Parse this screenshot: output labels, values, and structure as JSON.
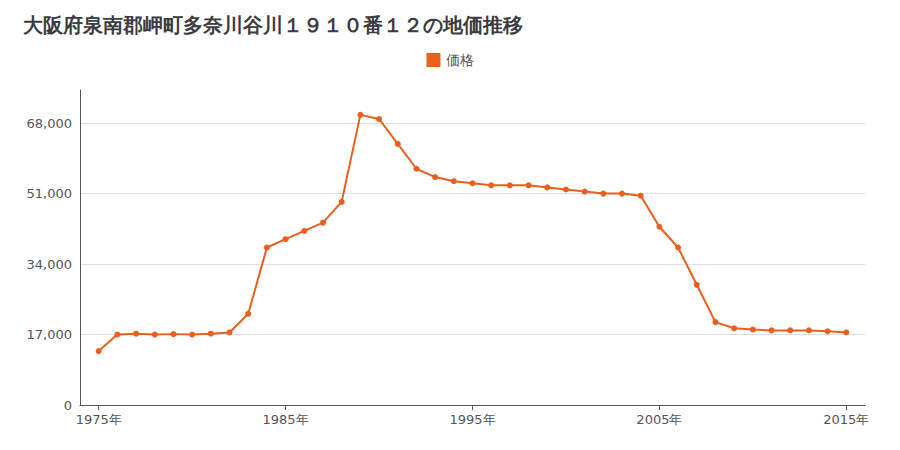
{
  "chart_data": {
    "type": "line",
    "title": "大阪府泉南郡岬町多奈川谷川１９１０番１２の地価推移",
    "x": [
      1975,
      1976,
      1977,
      1978,
      1979,
      1980,
      1981,
      1982,
      1983,
      1984,
      1985,
      1986,
      1987,
      1988,
      1989,
      1990,
      1991,
      1992,
      1993,
      1994,
      1995,
      1996,
      1997,
      1998,
      1999,
      2000,
      2001,
      2002,
      2003,
      2004,
      2005,
      2006,
      2007,
      2008,
      2009,
      2010,
      2011,
      2012,
      2013,
      2014,
      2015
    ],
    "series": [
      {
        "name": "価格",
        "color": "#E8601C",
        "marker": "circle",
        "values": [
          13000,
          17000,
          17200,
          17000,
          17100,
          17000,
          17200,
          17500,
          22000,
          38000,
          40000,
          42000,
          44000,
          49000,
          70000,
          69000,
          63000,
          57000,
          55000,
          54000,
          53500,
          53000,
          53000,
          53000,
          52500,
          52000,
          51500,
          51000,
          51000,
          50500,
          43000,
          38000,
          29000,
          20000,
          18500,
          18200,
          18000,
          18000,
          18000,
          17800,
          17500
        ]
      }
    ],
    "xlim": [
      1974,
      2016
    ],
    "xticks": [
      {
        "value": 1975,
        "label": "1975年"
      },
      {
        "value": 1985,
        "label": "1985年"
      },
      {
        "value": 1995,
        "label": "1995年"
      },
      {
        "value": 2005,
        "label": "2005年"
      },
      {
        "value": 2015,
        "label": "2015年"
      }
    ],
    "ylim": [
      0,
      76000
    ],
    "yticks": [
      0,
      {
        "value": 17000,
        "label": "17,000"
      },
      {
        "value": 34000,
        "label": "34,000"
      },
      {
        "value": 51000,
        "label": "51,000"
      },
      {
        "value": 68000,
        "label": "68,000"
      }
    ],
    "grid": "y",
    "legend": "top"
  }
}
